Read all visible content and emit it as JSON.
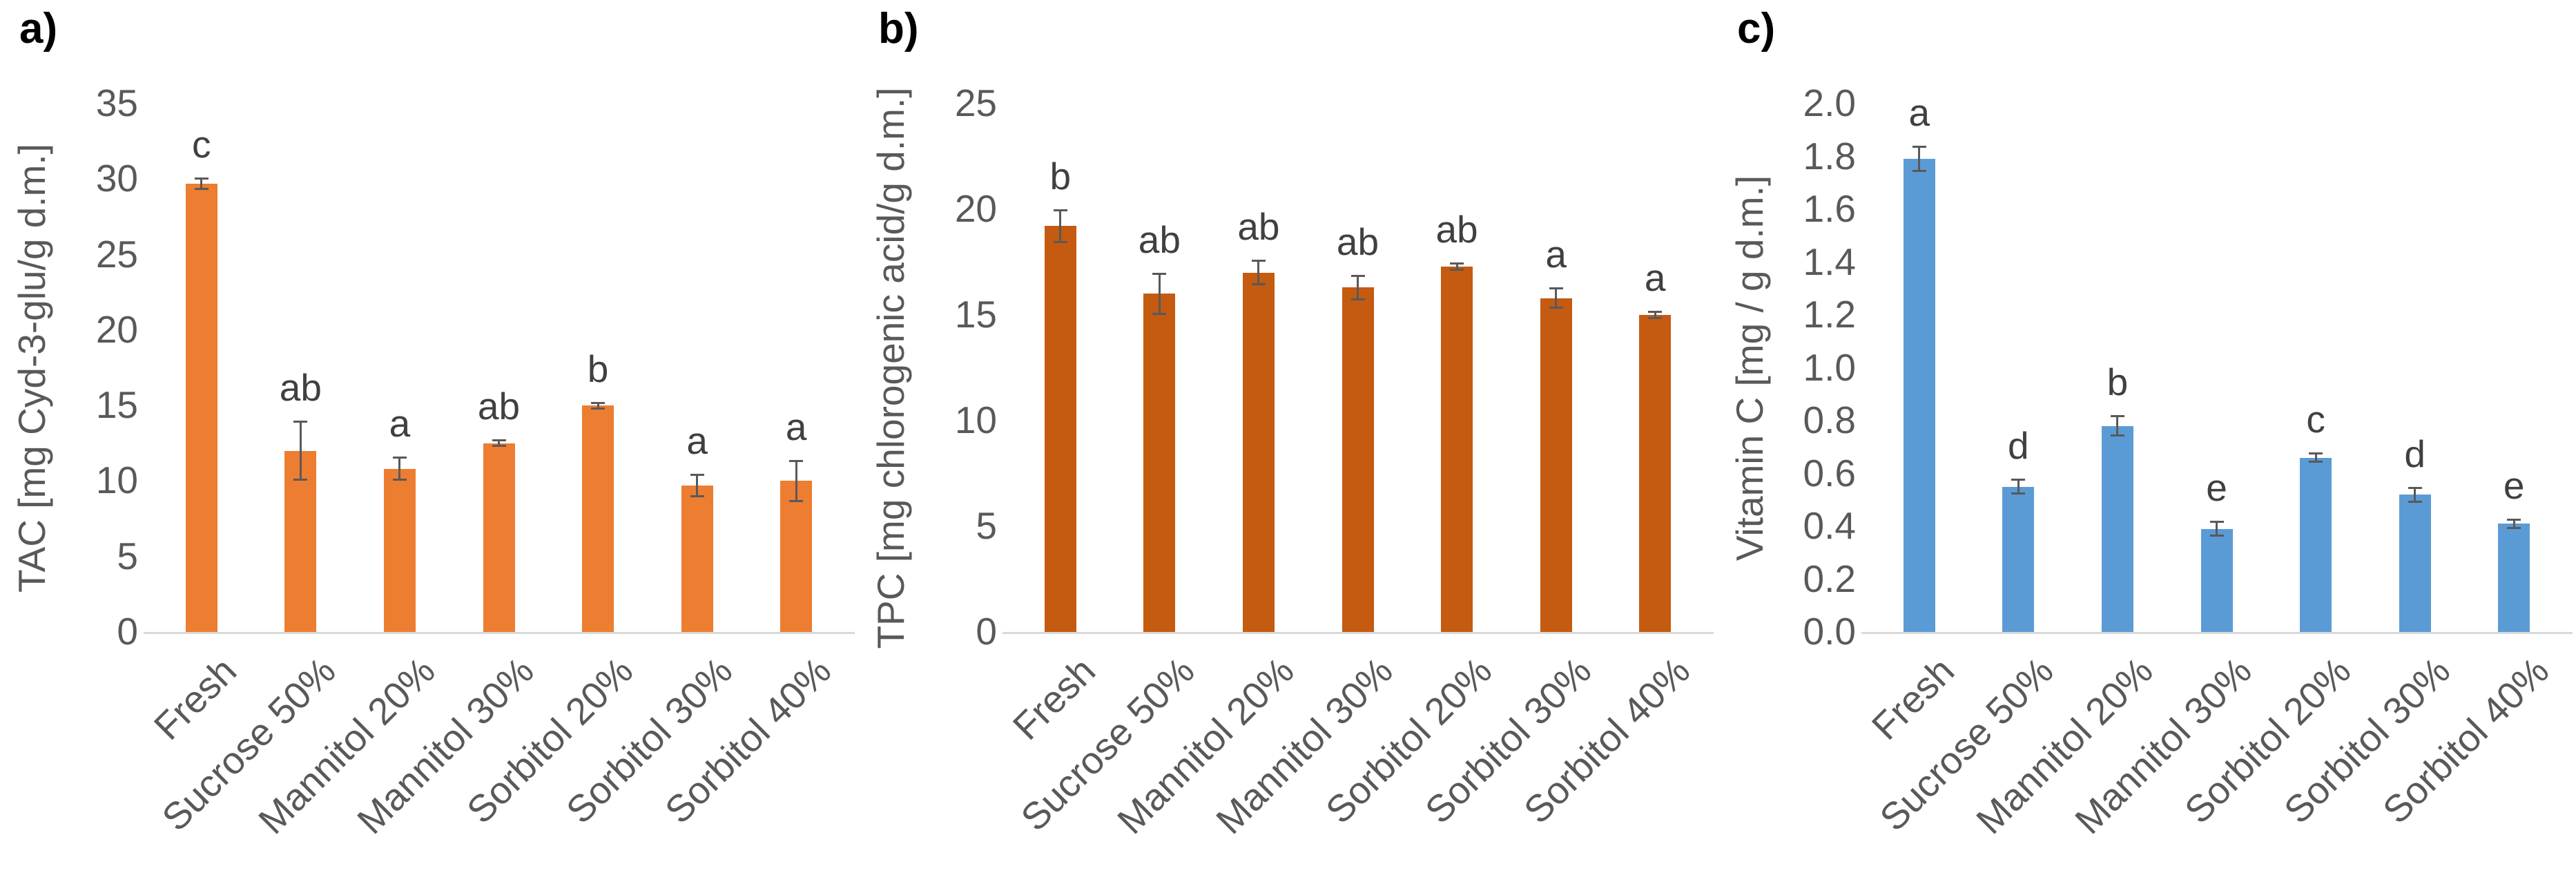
{
  "figure": {
    "description": "Three-panel bar chart figure comparing Fresh sample with osmotic pre-treatments",
    "background": "#ffffff",
    "text_color_ticks": "#595959",
    "text_color_letters": "#404040",
    "baseline_color": "#d9d9d9"
  },
  "chart_data": [
    {
      "type": "bar",
      "panel_label": "a)",
      "title": "",
      "xlabel": "",
      "ylabel": "TAC [mg Cyd-3-glu/g d.m.]",
      "categories": [
        "Fresh",
        "Sucrose 50%",
        "Mannitol 20%",
        "Mannitol 30%",
        "Sorbitol 20%",
        "Sorbitol 30%",
        "Sorbitol 40%"
      ],
      "values": [
        29.7,
        12.0,
        10.8,
        12.5,
        15.0,
        9.7,
        10.0
      ],
      "errors": [
        0.4,
        2.0,
        0.8,
        0.25,
        0.25,
        0.8,
        1.4
      ],
      "sig_letters": [
        "c",
        "ab",
        "a",
        "ab",
        "b",
        "a",
        "a"
      ],
      "ylim": [
        0,
        35
      ],
      "yticks": [
        "0",
        "5",
        "10",
        "15",
        "20",
        "25",
        "30",
        "35"
      ],
      "bar_color": "#ED7D31",
      "grid": false,
      "legend": null
    },
    {
      "type": "bar",
      "panel_label": "b)",
      "title": "",
      "xlabel": "",
      "ylabel": "TPC [mg chlorogenic acid/g d.m.]",
      "categories": [
        "Fresh",
        "Sucrose 50%",
        "Mannitol 20%",
        "Mannitol 30%",
        "Sorbitol 20%",
        "Sorbitol 30%",
        "Sorbitol 40%"
      ],
      "values": [
        19.2,
        16.0,
        17.0,
        16.3,
        17.3,
        15.8,
        15.0
      ],
      "errors": [
        0.8,
        1.0,
        0.6,
        0.6,
        0.2,
        0.5,
        0.2
      ],
      "sig_letters": [
        "b",
        "ab",
        "ab",
        "ab",
        "ab",
        "a",
        "a"
      ],
      "ylim": [
        0,
        25
      ],
      "yticks": [
        "0",
        "5",
        "10",
        "15",
        "20",
        "25"
      ],
      "bar_color": "#C55A11",
      "grid": false,
      "legend": null
    },
    {
      "type": "bar",
      "panel_label": "c)",
      "title": "",
      "xlabel": "",
      "ylabel": "Vitamin C [mg / g d.m.]",
      "categories": [
        "Fresh",
        "Sucrose 50%",
        "Mannitol 20%",
        "Mannitol 30%",
        "Sorbitol 20%",
        "Sorbitol 30%",
        "Sorbitol 40%"
      ],
      "values": [
        1.79,
        0.55,
        0.78,
        0.39,
        0.66,
        0.52,
        0.41
      ],
      "errors": [
        0.05,
        0.03,
        0.04,
        0.03,
        0.02,
        0.03,
        0.02
      ],
      "sig_letters": [
        "a",
        "d",
        "b",
        "e",
        "c",
        "d",
        "e"
      ],
      "ylim": [
        0,
        2.0
      ],
      "yticks": [
        "0.0",
        "0.2",
        "0.4",
        "0.6",
        "0.8",
        "1.0",
        "1.2",
        "1.4",
        "1.6",
        "1.8",
        "2.0"
      ],
      "bar_color": "#5B9BD5",
      "grid": false,
      "legend": null
    }
  ]
}
